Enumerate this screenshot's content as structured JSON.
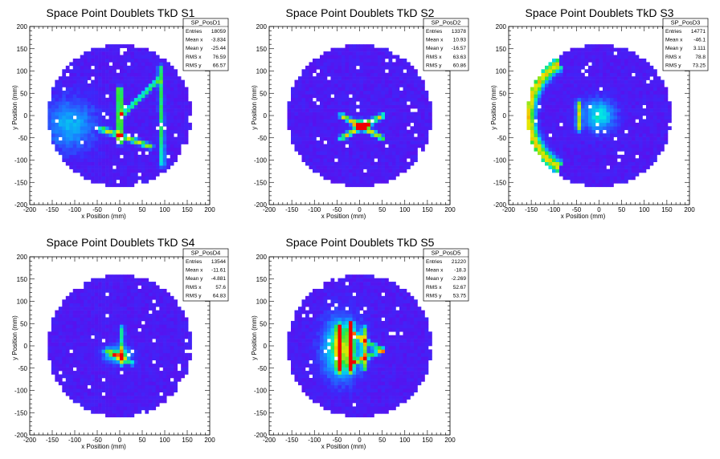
{
  "chart_data": [
    {
      "type": "heatmap",
      "title": "Space Point Doublets TkD S1",
      "xlabel": "x Position (mm)",
      "ylabel": "y Position (mm)",
      "xlim": [
        -200,
        200
      ],
      "ylim": [
        -200,
        200
      ],
      "xticks": [
        -200,
        -150,
        -100,
        -50,
        0,
        50,
        100,
        150,
        200
      ],
      "yticks": [
        -200,
        -150,
        -100,
        -50,
        0,
        50,
        100,
        150,
        200
      ],
      "stats": {
        "name": "SP_PosD1",
        "rows": [
          {
            "label": "Entries",
            "value": "18059"
          },
          {
            "label": "Mean x",
            "value": "-3.834"
          },
          {
            "label": "Mean y",
            "value": "-25.44"
          },
          {
            "label": "RMS x",
            "value": "76.59"
          },
          {
            "label": "RMS y",
            "value": "66.57"
          }
        ]
      },
      "features": [
        {
          "shape": "line",
          "x1": 0,
          "y1": 60,
          "x2": 0,
          "y2": -60,
          "intensity": 0.85
        },
        {
          "shape": "line",
          "x1": -40,
          "y1": -30,
          "x2": 70,
          "y2": -70,
          "intensity": 0.65
        },
        {
          "shape": "line",
          "x1": 5,
          "y1": 0,
          "x2": 85,
          "y2": 80,
          "intensity": 0.55
        },
        {
          "shape": "line",
          "x1": 90,
          "y1": 110,
          "x2": 95,
          "y2": -110,
          "intensity": 0.5
        },
        {
          "shape": "blob",
          "x": -110,
          "y": -20,
          "sx": 40,
          "sy": 40,
          "intensity": 0.3
        }
      ]
    },
    {
      "type": "heatmap",
      "title": "Space Point Doublets TkD S2",
      "xlabel": "x Position (mm)",
      "ylabel": "y Position (mm)",
      "xlim": [
        -200,
        200
      ],
      "ylim": [
        -200,
        200
      ],
      "xticks": [
        -200,
        -150,
        -100,
        -50,
        0,
        50,
        100,
        150,
        200
      ],
      "yticks": [
        -200,
        -150,
        -100,
        -50,
        0,
        50,
        100,
        150,
        200
      ],
      "stats": {
        "name": "SP_PosD2",
        "rows": [
          {
            "label": "Entries",
            "value": "13378"
          },
          {
            "label": "Mean x",
            "value": "10.93"
          },
          {
            "label": "Mean y",
            "value": "-16.57"
          },
          {
            "label": "RMS x",
            "value": "63.63"
          },
          {
            "label": "RMS y",
            "value": "60.86"
          }
        ]
      },
      "features": [
        {
          "shape": "line",
          "x1": -40,
          "y1": 0,
          "x2": 50,
          "y2": -50,
          "intensity": 0.7
        },
        {
          "shape": "line",
          "x1": -40,
          "y1": -50,
          "x2": 50,
          "y2": 0,
          "intensity": 0.7
        },
        {
          "shape": "blob",
          "x": 5,
          "y": -20,
          "sx": 12,
          "sy": 8,
          "intensity": 0.7
        }
      ]
    },
    {
      "type": "heatmap",
      "title": "Space Point Doublets TkD S3",
      "xlabel": "x Position (mm)",
      "ylabel": "y Position (mm)",
      "xlim": [
        -200,
        200
      ],
      "ylim": [
        -200,
        200
      ],
      "xticks": [
        -200,
        -150,
        -100,
        -50,
        0,
        50,
        100,
        150,
        200
      ],
      "yticks": [
        -200,
        -150,
        -100,
        -50,
        0,
        50,
        100,
        150,
        200
      ],
      "stats": {
        "name": "SP_PosD3",
        "rows": [
          {
            "label": "Entries",
            "value": "14771"
          },
          {
            "label": "Mean x",
            "value": "-46.1"
          },
          {
            "label": "Mean y",
            "value": "3.111"
          },
          {
            "label": "RMS x",
            "value": "78.8"
          },
          {
            "label": "RMS y",
            "value": "73.25"
          }
        ]
      },
      "features": [
        {
          "shape": "arc",
          "cx": -20,
          "cy": 0,
          "r": 135,
          "a1": 120,
          "a2": 240,
          "intensity": 0.7
        },
        {
          "shape": "line",
          "x1": -45,
          "y1": 30,
          "x2": -45,
          "y2": -30,
          "intensity": 0.6
        },
        {
          "shape": "blob",
          "x": 0,
          "y": 0,
          "sx": 25,
          "sy": 25,
          "intensity": 0.4
        }
      ]
    },
    {
      "type": "heatmap",
      "title": "Space Point Doublets TkD S4",
      "xlabel": "x Position (mm)",
      "ylabel": "y Position (mm)",
      "xlim": [
        -200,
        200
      ],
      "ylim": [
        -200,
        200
      ],
      "xticks": [
        -200,
        -150,
        -100,
        -50,
        0,
        50,
        100,
        150,
        200
      ],
      "yticks": [
        -200,
        -150,
        -100,
        -50,
        0,
        50,
        100,
        150,
        200
      ],
      "stats": {
        "name": "SP_PosD4",
        "rows": [
          {
            "label": "Entries",
            "value": "13544"
          },
          {
            "label": "Mean x",
            "value": "-11.61"
          },
          {
            "label": "Mean y",
            "value": "-4.881"
          },
          {
            "label": "RMS x",
            "value": "57.6"
          },
          {
            "label": "RMS y",
            "value": "64.83"
          }
        ]
      },
      "features": [
        {
          "shape": "blob",
          "x": -5,
          "y": -20,
          "sx": 20,
          "sy": 12,
          "intensity": 0.5
        },
        {
          "shape": "line",
          "x1": 5,
          "y1": 40,
          "x2": 5,
          "y2": -40,
          "intensity": 0.45
        },
        {
          "shape": "line",
          "x1": -30,
          "y1": -10,
          "x2": 30,
          "y2": -40,
          "intensity": 0.4
        }
      ]
    },
    {
      "type": "heatmap",
      "title": "Space Point Doublets TkD S5",
      "xlabel": "x Position (mm)",
      "ylabel": "y Position (mm)",
      "xlim": [
        -200,
        200
      ],
      "ylim": [
        -200,
        200
      ],
      "xticks": [
        -200,
        -150,
        -100,
        -50,
        0,
        50,
        100,
        150,
        200
      ],
      "yticks": [
        -200,
        -150,
        -100,
        -50,
        0,
        50,
        100,
        150,
        200
      ],
      "stats": {
        "name": "SP_PosD5",
        "rows": [
          {
            "label": "Entries",
            "value": "21220"
          },
          {
            "label": "Mean x",
            "value": "-18.3"
          },
          {
            "label": "Mean y",
            "value": "-2.269"
          },
          {
            "label": "RMS x",
            "value": "52.67"
          },
          {
            "label": "RMS y",
            "value": "53.75"
          }
        ]
      },
      "features": [
        {
          "shape": "blob",
          "x": -40,
          "y": -5,
          "sx": 28,
          "sy": 45,
          "intensity": 0.6
        },
        {
          "shape": "line",
          "x1": -45,
          "y1": 45,
          "x2": -45,
          "y2": -55,
          "intensity": 0.75
        },
        {
          "shape": "line",
          "x1": -20,
          "y1": 50,
          "x2": -20,
          "y2": -55,
          "intensity": 0.85
        },
        {
          "shape": "line",
          "x1": 10,
          "y1": 40,
          "x2": 10,
          "y2": -50,
          "intensity": 0.55
        },
        {
          "shape": "line",
          "x1": -20,
          "y1": 30,
          "x2": 50,
          "y2": -10,
          "intensity": 0.5
        },
        {
          "shape": "line",
          "x1": -20,
          "y1": -40,
          "x2": 50,
          "y2": -10,
          "intensity": 0.5
        }
      ]
    }
  ]
}
